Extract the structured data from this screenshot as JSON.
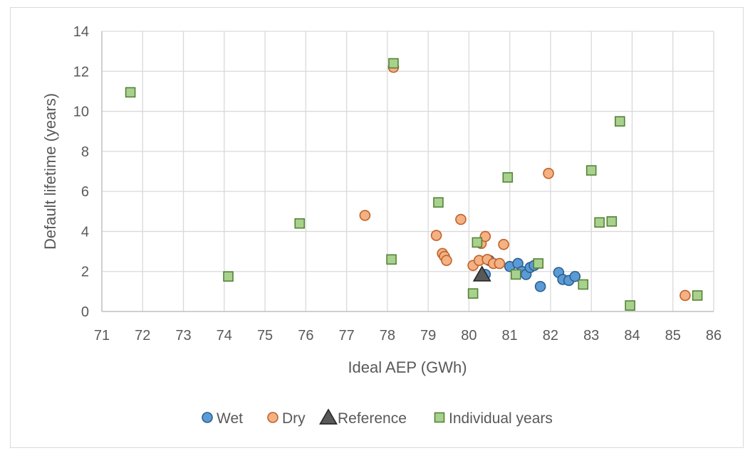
{
  "chart_data": {
    "type": "scatter",
    "title": "",
    "xlabel": "Ideal AEP (GWh)",
    "ylabel": "Default lifetime (years)",
    "xlim": [
      71,
      86
    ],
    "ylim": [
      0,
      14
    ],
    "xticks": [
      71,
      72,
      73,
      74,
      75,
      76,
      77,
      78,
      79,
      80,
      81,
      82,
      83,
      84,
      85,
      86
    ],
    "yticks": [
      0,
      2,
      4,
      6,
      8,
      10,
      12,
      14
    ],
    "grid": true,
    "legend_position": "bottom",
    "series": [
      {
        "name": "Wet",
        "marker": "circle",
        "color": "#5b9bd5",
        "edge": "#2e5f8f",
        "points": [
          [
            80.4,
            1.85
          ],
          [
            80.5,
            2.55
          ],
          [
            81.0,
            2.25
          ],
          [
            81.2,
            2.4
          ],
          [
            81.3,
            2.0
          ],
          [
            81.4,
            1.85
          ],
          [
            81.5,
            2.2
          ],
          [
            81.6,
            2.3
          ],
          [
            81.75,
            1.25
          ],
          [
            82.2,
            1.95
          ],
          [
            82.3,
            1.6
          ],
          [
            82.45,
            1.55
          ],
          [
            82.6,
            1.75
          ]
        ]
      },
      {
        "name": "Dry",
        "marker": "circle",
        "color": "#f4b183",
        "edge": "#c0622b",
        "points": [
          [
            78.15,
            12.2
          ],
          [
            77.45,
            4.8
          ],
          [
            79.2,
            3.8
          ],
          [
            79.35,
            2.9
          ],
          [
            79.4,
            2.75
          ],
          [
            79.45,
            2.55
          ],
          [
            79.8,
            4.6
          ],
          [
            80.1,
            2.3
          ],
          [
            80.25,
            2.55
          ],
          [
            80.3,
            3.4
          ],
          [
            80.4,
            3.75
          ],
          [
            80.45,
            2.6
          ],
          [
            80.6,
            2.4
          ],
          [
            80.75,
            2.4
          ],
          [
            80.85,
            3.35
          ],
          [
            81.95,
            6.9
          ],
          [
            85.3,
            0.8
          ]
        ]
      },
      {
        "name": "Reference",
        "marker": "triangle",
        "color": "#595959",
        "edge": "#262626",
        "points": [
          [
            80.32,
            1.85
          ]
        ]
      },
      {
        "name": "Individual years",
        "marker": "square",
        "color": "#a9d18e",
        "edge": "#548235",
        "points": [
          [
            71.7,
            10.95
          ],
          [
            74.1,
            1.75
          ],
          [
            75.85,
            4.4
          ],
          [
            78.1,
            2.6
          ],
          [
            78.15,
            12.4
          ],
          [
            79.25,
            5.45
          ],
          [
            80.1,
            0.9
          ],
          [
            80.2,
            3.45
          ],
          [
            80.95,
            6.7
          ],
          [
            81.15,
            1.85
          ],
          [
            81.7,
            2.4
          ],
          [
            82.8,
            1.35
          ],
          [
            83.0,
            7.05
          ],
          [
            83.2,
            4.45
          ],
          [
            83.5,
            4.5
          ],
          [
            83.7,
            9.5
          ],
          [
            83.95,
            0.3
          ],
          [
            85.6,
            0.8
          ]
        ]
      }
    ]
  }
}
